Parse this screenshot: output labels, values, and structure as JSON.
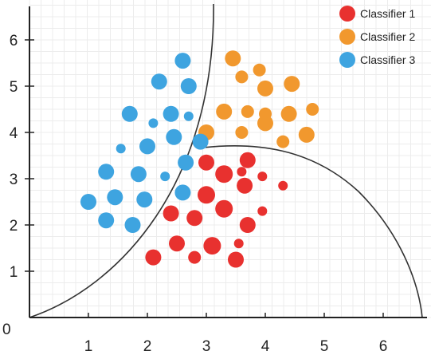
{
  "chart_data": {
    "type": "scatter",
    "origin_label": "0",
    "x_ticks": [
      1,
      2,
      3,
      4,
      5,
      6
    ],
    "y_ticks": [
      1,
      2,
      3,
      4,
      5,
      6
    ],
    "xlim": [
      0,
      6.8
    ],
    "ylim": [
      0,
      6.8
    ],
    "grid": true,
    "legend_position": "top-right",
    "series": [
      {
        "name": "Classifier 1",
        "color": "#e8312f",
        "points": [
          [
            2.1,
            1.3,
            10
          ],
          [
            2.5,
            1.6,
            10
          ],
          [
            2.8,
            1.3,
            8
          ],
          [
            3.1,
            1.55,
            11
          ],
          [
            3.5,
            1.25,
            10
          ],
          [
            3.55,
            1.6,
            6
          ],
          [
            2.4,
            2.25,
            10
          ],
          [
            2.8,
            2.15,
            10
          ],
          [
            3.0,
            2.65,
            11
          ],
          [
            3.3,
            2.35,
            11
          ],
          [
            3.7,
            2.0,
            10
          ],
          [
            3.95,
            2.3,
            6
          ],
          [
            3.0,
            3.35,
            10
          ],
          [
            3.3,
            3.1,
            11
          ],
          [
            3.6,
            3.15,
            6
          ],
          [
            3.7,
            3.4,
            10
          ],
          [
            3.65,
            2.85,
            10
          ],
          [
            3.95,
            3.05,
            6
          ],
          [
            4.3,
            2.85,
            6
          ]
        ]
      },
      {
        "name": "Classifier 2",
        "color": "#f1982e",
        "points": [
          [
            3.45,
            5.6,
            10
          ],
          [
            3.6,
            5.2,
            8
          ],
          [
            3.9,
            5.35,
            8
          ],
          [
            4.0,
            4.95,
            10
          ],
          [
            4.45,
            5.05,
            10
          ],
          [
            3.3,
            4.45,
            10
          ],
          [
            3.7,
            4.45,
            8
          ],
          [
            4.0,
            4.4,
            8
          ],
          [
            4.4,
            4.4,
            10
          ],
          [
            4.8,
            4.5,
            8
          ],
          [
            3.0,
            4.0,
            10
          ],
          [
            3.6,
            4.0,
            8
          ],
          [
            4.0,
            4.2,
            10
          ],
          [
            4.3,
            3.8,
            8
          ],
          [
            4.7,
            3.95,
            10
          ]
        ]
      },
      {
        "name": "Classifier 3",
        "color": "#3ea4e0",
        "points": [
          [
            2.6,
            5.55,
            10
          ],
          [
            2.2,
            5.1,
            10
          ],
          [
            2.7,
            5.0,
            10
          ],
          [
            1.7,
            4.4,
            10
          ],
          [
            2.1,
            4.2,
            6
          ],
          [
            2.4,
            4.4,
            10
          ],
          [
            2.7,
            4.35,
            6
          ],
          [
            1.55,
            3.65,
            6
          ],
          [
            2.0,
            3.7,
            10
          ],
          [
            2.45,
            3.9,
            10
          ],
          [
            2.9,
            3.8,
            10
          ],
          [
            1.3,
            3.15,
            10
          ],
          [
            1.85,
            3.1,
            10
          ],
          [
            2.3,
            3.05,
            6
          ],
          [
            2.65,
            3.35,
            10
          ],
          [
            1.0,
            2.5,
            10
          ],
          [
            1.45,
            2.6,
            10
          ],
          [
            1.95,
            2.55,
            10
          ],
          [
            2.6,
            2.7,
            10
          ],
          [
            1.3,
            2.1,
            10
          ],
          [
            1.75,
            2.0,
            10
          ]
        ]
      }
    ]
  },
  "legend": [
    {
      "label": "Classifier 1",
      "color": "#e8312f"
    },
    {
      "label": "Classifier 2",
      "color": "#f1982e"
    },
    {
      "label": "Classifier 3",
      "color": "#3ea4e0"
    }
  ]
}
